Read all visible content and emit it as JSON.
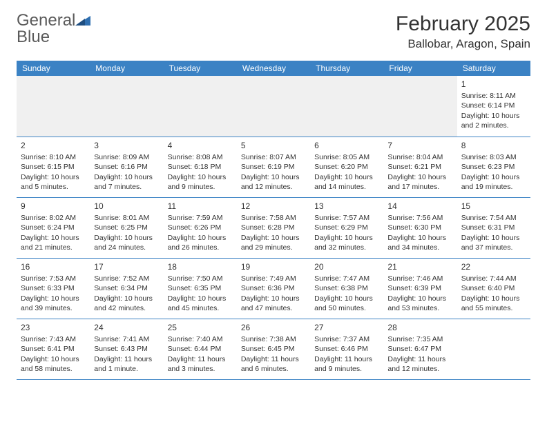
{
  "logo": {
    "word1": "General",
    "word2": "Blue"
  },
  "title": "February 2025",
  "subtitle": "Ballobar, Aragon, Spain",
  "colors": {
    "header_bg": "#3b82c4",
    "header_text": "#ffffff",
    "rule": "#3b82c4",
    "body_text": "#333333",
    "blank_bg": "#f0f0f0",
    "logo_gray": "#5a5a5a",
    "logo_blue": "#3b7fc4"
  },
  "daynames": [
    "Sunday",
    "Monday",
    "Tuesday",
    "Wednesday",
    "Thursday",
    "Friday",
    "Saturday"
  ],
  "labels": {
    "sunrise": "Sunrise:",
    "sunset": "Sunset:",
    "daylight": "Daylight:"
  },
  "weeks": [
    [
      null,
      null,
      null,
      null,
      null,
      null,
      {
        "d": "1",
        "sr": "8:11 AM",
        "ss": "6:14 PM",
        "dl": "10 hours and 2 minutes."
      }
    ],
    [
      {
        "d": "2",
        "sr": "8:10 AM",
        "ss": "6:15 PM",
        "dl": "10 hours and 5 minutes."
      },
      {
        "d": "3",
        "sr": "8:09 AM",
        "ss": "6:16 PM",
        "dl": "10 hours and 7 minutes."
      },
      {
        "d": "4",
        "sr": "8:08 AM",
        "ss": "6:18 PM",
        "dl": "10 hours and 9 minutes."
      },
      {
        "d": "5",
        "sr": "8:07 AM",
        "ss": "6:19 PM",
        "dl": "10 hours and 12 minutes."
      },
      {
        "d": "6",
        "sr": "8:05 AM",
        "ss": "6:20 PM",
        "dl": "10 hours and 14 minutes."
      },
      {
        "d": "7",
        "sr": "8:04 AM",
        "ss": "6:21 PM",
        "dl": "10 hours and 17 minutes."
      },
      {
        "d": "8",
        "sr": "8:03 AM",
        "ss": "6:23 PM",
        "dl": "10 hours and 19 minutes."
      }
    ],
    [
      {
        "d": "9",
        "sr": "8:02 AM",
        "ss": "6:24 PM",
        "dl": "10 hours and 21 minutes."
      },
      {
        "d": "10",
        "sr": "8:01 AM",
        "ss": "6:25 PM",
        "dl": "10 hours and 24 minutes."
      },
      {
        "d": "11",
        "sr": "7:59 AM",
        "ss": "6:26 PM",
        "dl": "10 hours and 26 minutes."
      },
      {
        "d": "12",
        "sr": "7:58 AM",
        "ss": "6:28 PM",
        "dl": "10 hours and 29 minutes."
      },
      {
        "d": "13",
        "sr": "7:57 AM",
        "ss": "6:29 PM",
        "dl": "10 hours and 32 minutes."
      },
      {
        "d": "14",
        "sr": "7:56 AM",
        "ss": "6:30 PM",
        "dl": "10 hours and 34 minutes."
      },
      {
        "d": "15",
        "sr": "7:54 AM",
        "ss": "6:31 PM",
        "dl": "10 hours and 37 minutes."
      }
    ],
    [
      {
        "d": "16",
        "sr": "7:53 AM",
        "ss": "6:33 PM",
        "dl": "10 hours and 39 minutes."
      },
      {
        "d": "17",
        "sr": "7:52 AM",
        "ss": "6:34 PM",
        "dl": "10 hours and 42 minutes."
      },
      {
        "d": "18",
        "sr": "7:50 AM",
        "ss": "6:35 PM",
        "dl": "10 hours and 45 minutes."
      },
      {
        "d": "19",
        "sr": "7:49 AM",
        "ss": "6:36 PM",
        "dl": "10 hours and 47 minutes."
      },
      {
        "d": "20",
        "sr": "7:47 AM",
        "ss": "6:38 PM",
        "dl": "10 hours and 50 minutes."
      },
      {
        "d": "21",
        "sr": "7:46 AM",
        "ss": "6:39 PM",
        "dl": "10 hours and 53 minutes."
      },
      {
        "d": "22",
        "sr": "7:44 AM",
        "ss": "6:40 PM",
        "dl": "10 hours and 55 minutes."
      }
    ],
    [
      {
        "d": "23",
        "sr": "7:43 AM",
        "ss": "6:41 PM",
        "dl": "10 hours and 58 minutes."
      },
      {
        "d": "24",
        "sr": "7:41 AM",
        "ss": "6:43 PM",
        "dl": "11 hours and 1 minute."
      },
      {
        "d": "25",
        "sr": "7:40 AM",
        "ss": "6:44 PM",
        "dl": "11 hours and 3 minutes."
      },
      {
        "d": "26",
        "sr": "7:38 AM",
        "ss": "6:45 PM",
        "dl": "11 hours and 6 minutes."
      },
      {
        "d": "27",
        "sr": "7:37 AM",
        "ss": "6:46 PM",
        "dl": "11 hours and 9 minutes."
      },
      {
        "d": "28",
        "sr": "7:35 AM",
        "ss": "6:47 PM",
        "dl": "11 hours and 12 minutes."
      },
      null
    ]
  ]
}
